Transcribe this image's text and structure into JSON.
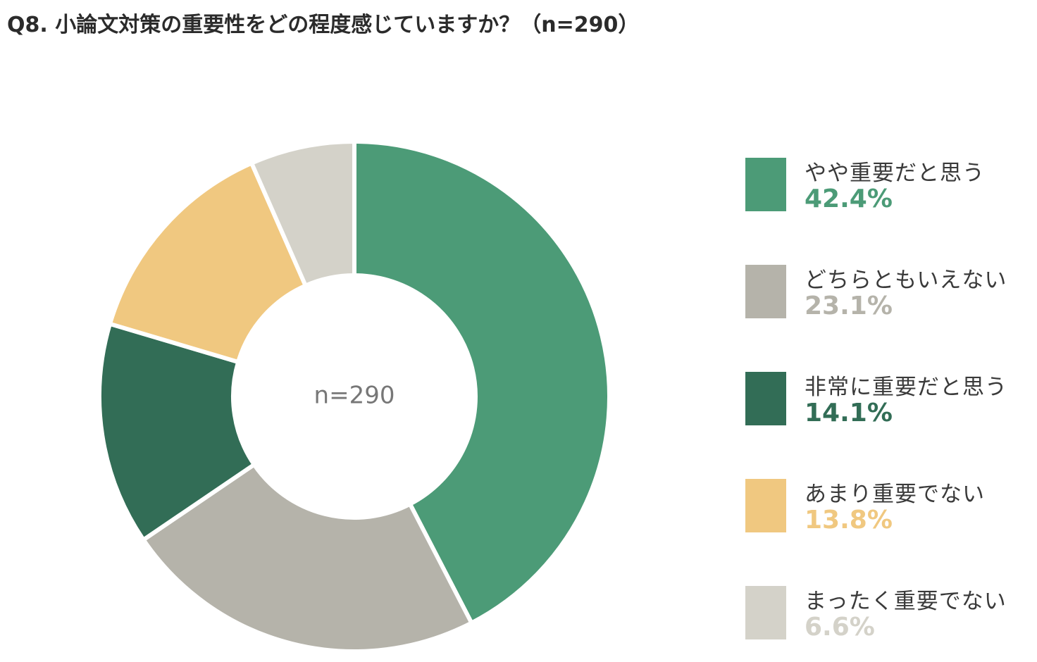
{
  "chart_data": {
    "type": "pie",
    "title": "Q8. 小論文対策の重要性をどの程度感じていますか？（n=290）",
    "center_label": "n=290",
    "sample_size": 290,
    "slices": [
      {
        "label": "やや重要だと思う",
        "value": 42.4,
        "display": "42.4%",
        "color": "#4c9b77"
      },
      {
        "label": "どちらともいえない",
        "value": 23.1,
        "display": "23.1%",
        "color": "#b5b3aa"
      },
      {
        "label": "非常に重要だと思う",
        "value": 14.1,
        "display": "14.1%",
        "color": "#326d56"
      },
      {
        "label": "あまり重要でない",
        "value": 13.8,
        "display": "13.8%",
        "color": "#f0c880"
      },
      {
        "label": "まったく重要でない",
        "value": 6.6,
        "display": "6.6%",
        "color": "#d4d2c9"
      }
    ],
    "legend_position": "right"
  }
}
